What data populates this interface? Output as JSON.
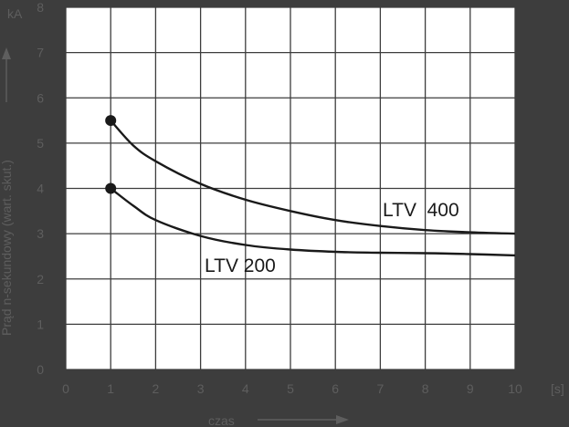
{
  "chart_data": {
    "type": "line",
    "title": "",
    "xlabel": "czas",
    "ylabel": "Prąd n-sekundowy (wart. skut.)",
    "x_unit": "[s]",
    "y_unit": "kA",
    "xlim": [
      0,
      10
    ],
    "ylim": [
      0,
      8
    ],
    "x_ticks": [
      "0",
      "1",
      "2",
      "3",
      "4",
      "5",
      "6",
      "7",
      "8",
      "9",
      "10"
    ],
    "y_ticks": [
      "0",
      "1",
      "2",
      "3",
      "4",
      "5",
      "6",
      "7",
      "8"
    ],
    "grid": true,
    "series": [
      {
        "name": "LTV  400",
        "x": [
          1,
          1.5,
          2,
          3,
          4,
          5,
          6,
          7,
          8,
          9,
          10
        ],
        "y": [
          5.5,
          4.95,
          4.6,
          4.1,
          3.75,
          3.5,
          3.3,
          3.17,
          3.08,
          3.03,
          3.0
        ]
      },
      {
        "name": "LTV 200",
        "x": [
          1,
          1.5,
          2,
          3,
          4,
          5,
          6,
          7,
          8,
          9,
          10
        ],
        "y": [
          4.0,
          3.62,
          3.3,
          2.95,
          2.75,
          2.65,
          2.6,
          2.58,
          2.57,
          2.55,
          2.52
        ]
      }
    ],
    "colors": {
      "background": "#3d3d3d",
      "plot": "#ffffff",
      "grid": "#3d3d3d",
      "text": "#5e5e5e",
      "curve": "#1a1a1a"
    }
  }
}
